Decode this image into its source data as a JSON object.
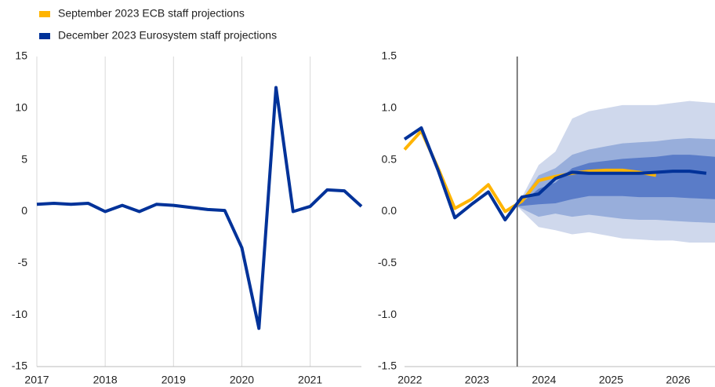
{
  "chart_data": [
    {
      "type": "line",
      "x": [
        2017,
        2017.25,
        2017.5,
        2017.75,
        2018,
        2018.25,
        2018.5,
        2018.75,
        2019,
        2019.25,
        2019.5,
        2019.75,
        2020,
        2020.25,
        2020.5,
        2020.75,
        2021,
        2021.25,
        2021.5,
        2021.75
      ],
      "series": [
        {
          "color": "#003299",
          "values": [
            0.7,
            0.8,
            0.7,
            0.8,
            0.0,
            0.6,
            0.0,
            0.7,
            0.6,
            0.4,
            0.2,
            0.1,
            -3.5,
            -11.3,
            12.0,
            0.0,
            0.5,
            2.1,
            2.0,
            0.5
          ]
        }
      ],
      "xlim": [
        2017,
        2021.75
      ],
      "xticks": [
        2017,
        2018,
        2019,
        2020,
        2021
      ],
      "ylim": [
        -15,
        15
      ],
      "yticks": [
        -15,
        -10,
        -5,
        0,
        5,
        10,
        15
      ],
      "grid": "x"
    },
    {
      "type": "fan",
      "x": [
        2021.92,
        2022.17,
        2022.42,
        2022.67,
        2022.92,
        2023.17,
        2023.42,
        2023.67,
        2023.92,
        2024.17,
        2024.42,
        2024.67,
        2024.92,
        2025.17,
        2025.42,
        2025.67,
        2025.92,
        2026.17,
        2026.42
      ],
      "series": [
        {
          "name": "September 2023 ECB staff projections",
          "color": "#ffb400",
          "values": [
            0.6,
            0.78,
            0.42,
            0.03,
            0.12,
            0.26,
            0.0,
            0.1,
            0.3,
            0.34,
            0.37,
            0.39,
            0.4,
            0.4,
            0.38,
            0.35,
            null,
            null,
            null
          ]
        },
        {
          "name": "December 2023 Eurosystem staff projections",
          "color": "#003299",
          "values": [
            0.7,
            0.81,
            0.4,
            -0.06,
            0.07,
            0.19,
            -0.08,
            0.14,
            0.17,
            0.32,
            0.38,
            0.37,
            0.37,
            0.37,
            0.37,
            0.38,
            0.39,
            0.39,
            0.37
          ]
        }
      ],
      "fan_x": [
        2023.6,
        2023.92,
        2024.17,
        2024.42,
        2024.67,
        2024.92,
        2025.17,
        2025.42,
        2025.67,
        2025.92,
        2026.17,
        2026.55
      ],
      "bands": [
        {
          "color": "#cfd8ec",
          "upper": [
            0.05,
            0.45,
            0.58,
            0.9,
            0.97,
            1.0,
            1.03,
            1.03,
            1.03,
            1.05,
            1.07,
            1.05
          ],
          "lower": [
            0.05,
            -0.15,
            -0.18,
            -0.22,
            -0.2,
            -0.23,
            -0.26,
            -0.27,
            -0.28,
            -0.28,
            -0.3,
            -0.3
          ]
        },
        {
          "color": "#98aedb",
          "upper": [
            0.05,
            0.35,
            0.42,
            0.55,
            0.6,
            0.63,
            0.66,
            0.67,
            0.68,
            0.7,
            0.71,
            0.7
          ],
          "lower": [
            0.05,
            -0.05,
            -0.02,
            -0.05,
            -0.03,
            -0.05,
            -0.07,
            -0.08,
            -0.08,
            -0.09,
            -0.1,
            -0.11
          ]
        },
        {
          "color": "#5a7cc8",
          "upper": [
            0.05,
            0.22,
            0.28,
            0.42,
            0.47,
            0.49,
            0.51,
            0.52,
            0.53,
            0.55,
            0.55,
            0.53
          ],
          "lower": [
            0.05,
            0.07,
            0.08,
            0.12,
            0.15,
            0.15,
            0.15,
            0.14,
            0.14,
            0.14,
            0.13,
            0.12
          ]
        }
      ],
      "vline": 2023.6,
      "xlim": [
        2021.92,
        2026.55
      ],
      "xticks": [
        2022,
        2023,
        2024,
        2025,
        2026
      ],
      "ylim": [
        -1.5,
        1.5
      ],
      "yticks": [
        {
          "value": -1.5,
          "label": "-1.5"
        },
        {
          "value": -1,
          "label": "-1.0"
        },
        -0.5,
        {
          "value": 0,
          "label": "0.0"
        },
        0.5,
        {
          "value": 1,
          "label": "1.0"
        },
        1.5
      ],
      "legend": "top-left"
    }
  ]
}
